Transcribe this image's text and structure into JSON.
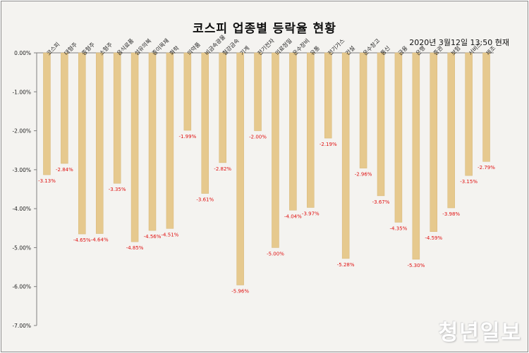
{
  "chart_data": {
    "type": "bar",
    "title": "코스피 업종별 등락율 현황",
    "subtitle": "2020년 3월12일  13:50 현재",
    "categories": [
      "코스피",
      "대형주",
      "중형주",
      "소형주",
      "음식료품",
      "섬유의복",
      "종이목재",
      "화학",
      "의약품",
      "비금속광물",
      "철강금속",
      "기계",
      "전기전자",
      "의료정밀",
      "운수장비",
      "유통",
      "전기가스",
      "건설",
      "운수창고",
      "통신",
      "금융",
      "은행",
      "증권",
      "보험",
      "서비스",
      "제조"
    ],
    "values": [
      -3.13,
      -2.84,
      -4.65,
      -4.64,
      -3.35,
      -4.85,
      -4.56,
      -4.51,
      -1.99,
      -3.61,
      -2.82,
      -5.96,
      -2.0,
      -5.0,
      -4.04,
      -3.97,
      -2.19,
      -5.28,
      -2.96,
      -3.67,
      -4.35,
      -5.3,
      -4.59,
      -3.98,
      -3.15,
      -2.79
    ],
    "data_labels": [
      "-3.13%",
      "-2.84%",
      "-4.65%",
      "-4.64%",
      "-3.35%",
      "-4.85%",
      "-4.56%",
      "-4.51%",
      "-1.99%",
      "-3.61%",
      "-2.82%",
      "-5.96%",
      "-2.00%",
      "-5.00%",
      "-4.04%",
      "-3.97%",
      "-2.19%",
      "-5.28%",
      "-2.96%",
      "-3.67%",
      "-4.35%",
      "-5.30%",
      "-4.59%",
      "-3.98%",
      "-3.15%",
      "-2.79%"
    ],
    "ylim": [
      -7,
      0
    ],
    "yticks": [
      0,
      -1,
      -2,
      -3,
      -4,
      -5,
      -6,
      -7
    ],
    "ytick_labels": [
      "0.00%",
      "-1.00%",
      "-2.00%",
      "-3.00%",
      "-4.00%",
      "-5.00%",
      "-6.00%",
      "-7.00%"
    ],
    "xlabel": "",
    "ylabel": "",
    "grid": false,
    "legend": "none",
    "colors": {
      "bar": "#e6c98e",
      "bar_edge": "#d8b777",
      "label": "#e01010",
      "axis": "#7f7f7f"
    }
  },
  "watermark": "청년일보"
}
